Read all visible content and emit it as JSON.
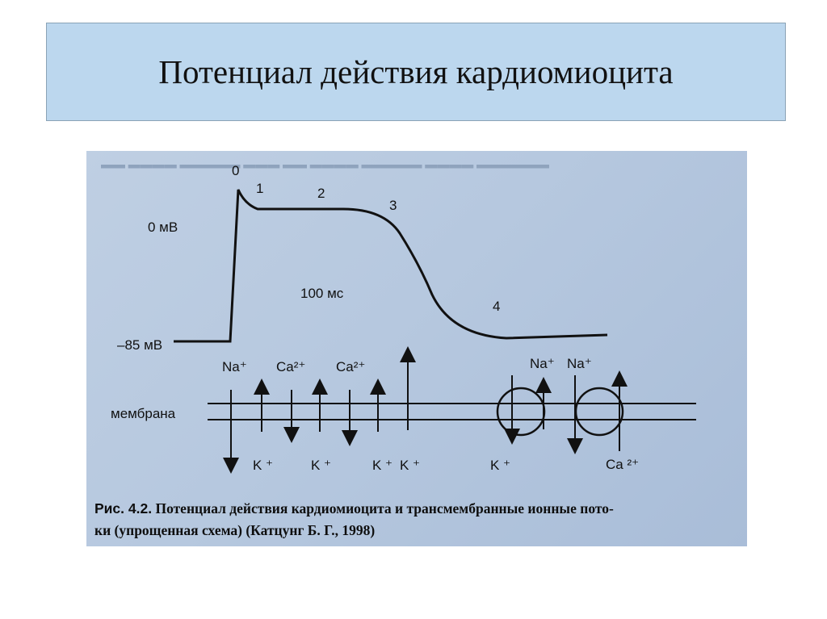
{
  "slide": {
    "title": "Потенциал действия кардиомиоцита"
  },
  "figure": {
    "phase_labels": [
      "0",
      "1",
      "2",
      "3",
      "4"
    ],
    "voltage_top": "0 мВ",
    "voltage_bottom": "–85 мВ",
    "time_scale": "100 мс",
    "membrane_label": "мембрана",
    "ions_top": [
      "Na⁺",
      "Ca²⁺",
      "Ca²⁺",
      "Na⁺",
      "Na⁺"
    ],
    "ions_bottom": [
      "K ⁺",
      "K ⁺",
      "K ⁺",
      "K ⁺",
      "K ⁺",
      "Ca ²⁺"
    ],
    "caption_prefix": "Рис. 4.2.",
    "caption_line1": " Потенциал действия кардиомиоцита и трансмембранные ионные пото-",
    "caption_line2": "ки (упрощенная схема) (Катцунг Б. Г., 1998)"
  }
}
